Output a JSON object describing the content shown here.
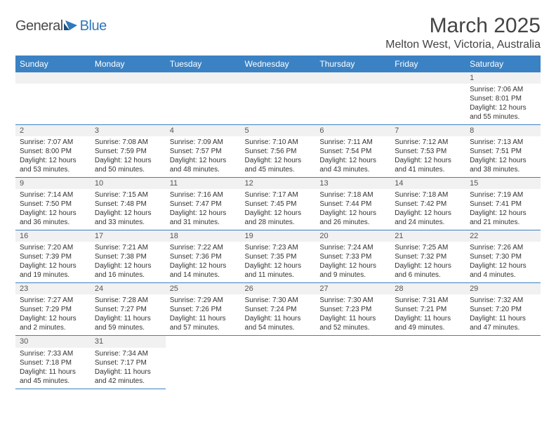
{
  "logo": {
    "text_a": "General",
    "text_b": "Blue"
  },
  "title": "March 2025",
  "location": "Melton West, Victoria, Australia",
  "colors": {
    "header_bg": "#3b82c4",
    "header_fg": "#ffffff",
    "row_divider": "#3b82c4",
    "daynum_bg": "#f1f1f1",
    "text": "#333333",
    "title_color": "#444444",
    "logo_gray": "#4a4a4a",
    "logo_blue": "#2f78bb"
  },
  "typography": {
    "title_size_pt": 30,
    "location_size_pt": 16,
    "dow_size_pt": 12,
    "daynum_size_pt": 11,
    "body_size_pt": 10
  },
  "days_of_week": [
    "Sunday",
    "Monday",
    "Tuesday",
    "Wednesday",
    "Thursday",
    "Friday",
    "Saturday"
  ],
  "weeks": [
    [
      null,
      null,
      null,
      null,
      null,
      null,
      {
        "n": "1",
        "sunrise": "Sunrise: 7:06 AM",
        "sunset": "Sunset: 8:01 PM",
        "daylight": "Daylight: 12 hours and 55 minutes."
      }
    ],
    [
      {
        "n": "2",
        "sunrise": "Sunrise: 7:07 AM",
        "sunset": "Sunset: 8:00 PM",
        "daylight": "Daylight: 12 hours and 53 minutes."
      },
      {
        "n": "3",
        "sunrise": "Sunrise: 7:08 AM",
        "sunset": "Sunset: 7:59 PM",
        "daylight": "Daylight: 12 hours and 50 minutes."
      },
      {
        "n": "4",
        "sunrise": "Sunrise: 7:09 AM",
        "sunset": "Sunset: 7:57 PM",
        "daylight": "Daylight: 12 hours and 48 minutes."
      },
      {
        "n": "5",
        "sunrise": "Sunrise: 7:10 AM",
        "sunset": "Sunset: 7:56 PM",
        "daylight": "Daylight: 12 hours and 45 minutes."
      },
      {
        "n": "6",
        "sunrise": "Sunrise: 7:11 AM",
        "sunset": "Sunset: 7:54 PM",
        "daylight": "Daylight: 12 hours and 43 minutes."
      },
      {
        "n": "7",
        "sunrise": "Sunrise: 7:12 AM",
        "sunset": "Sunset: 7:53 PM",
        "daylight": "Daylight: 12 hours and 41 minutes."
      },
      {
        "n": "8",
        "sunrise": "Sunrise: 7:13 AM",
        "sunset": "Sunset: 7:51 PM",
        "daylight": "Daylight: 12 hours and 38 minutes."
      }
    ],
    [
      {
        "n": "9",
        "sunrise": "Sunrise: 7:14 AM",
        "sunset": "Sunset: 7:50 PM",
        "daylight": "Daylight: 12 hours and 36 minutes."
      },
      {
        "n": "10",
        "sunrise": "Sunrise: 7:15 AM",
        "sunset": "Sunset: 7:48 PM",
        "daylight": "Daylight: 12 hours and 33 minutes."
      },
      {
        "n": "11",
        "sunrise": "Sunrise: 7:16 AM",
        "sunset": "Sunset: 7:47 PM",
        "daylight": "Daylight: 12 hours and 31 minutes."
      },
      {
        "n": "12",
        "sunrise": "Sunrise: 7:17 AM",
        "sunset": "Sunset: 7:45 PM",
        "daylight": "Daylight: 12 hours and 28 minutes."
      },
      {
        "n": "13",
        "sunrise": "Sunrise: 7:18 AM",
        "sunset": "Sunset: 7:44 PM",
        "daylight": "Daylight: 12 hours and 26 minutes."
      },
      {
        "n": "14",
        "sunrise": "Sunrise: 7:18 AM",
        "sunset": "Sunset: 7:42 PM",
        "daylight": "Daylight: 12 hours and 24 minutes."
      },
      {
        "n": "15",
        "sunrise": "Sunrise: 7:19 AM",
        "sunset": "Sunset: 7:41 PM",
        "daylight": "Daylight: 12 hours and 21 minutes."
      }
    ],
    [
      {
        "n": "16",
        "sunrise": "Sunrise: 7:20 AM",
        "sunset": "Sunset: 7:39 PM",
        "daylight": "Daylight: 12 hours and 19 minutes."
      },
      {
        "n": "17",
        "sunrise": "Sunrise: 7:21 AM",
        "sunset": "Sunset: 7:38 PM",
        "daylight": "Daylight: 12 hours and 16 minutes."
      },
      {
        "n": "18",
        "sunrise": "Sunrise: 7:22 AM",
        "sunset": "Sunset: 7:36 PM",
        "daylight": "Daylight: 12 hours and 14 minutes."
      },
      {
        "n": "19",
        "sunrise": "Sunrise: 7:23 AM",
        "sunset": "Sunset: 7:35 PM",
        "daylight": "Daylight: 12 hours and 11 minutes."
      },
      {
        "n": "20",
        "sunrise": "Sunrise: 7:24 AM",
        "sunset": "Sunset: 7:33 PM",
        "daylight": "Daylight: 12 hours and 9 minutes."
      },
      {
        "n": "21",
        "sunrise": "Sunrise: 7:25 AM",
        "sunset": "Sunset: 7:32 PM",
        "daylight": "Daylight: 12 hours and 6 minutes."
      },
      {
        "n": "22",
        "sunrise": "Sunrise: 7:26 AM",
        "sunset": "Sunset: 7:30 PM",
        "daylight": "Daylight: 12 hours and 4 minutes."
      }
    ],
    [
      {
        "n": "23",
        "sunrise": "Sunrise: 7:27 AM",
        "sunset": "Sunset: 7:29 PM",
        "daylight": "Daylight: 12 hours and 2 minutes."
      },
      {
        "n": "24",
        "sunrise": "Sunrise: 7:28 AM",
        "sunset": "Sunset: 7:27 PM",
        "daylight": "Daylight: 11 hours and 59 minutes."
      },
      {
        "n": "25",
        "sunrise": "Sunrise: 7:29 AM",
        "sunset": "Sunset: 7:26 PM",
        "daylight": "Daylight: 11 hours and 57 minutes."
      },
      {
        "n": "26",
        "sunrise": "Sunrise: 7:30 AM",
        "sunset": "Sunset: 7:24 PM",
        "daylight": "Daylight: 11 hours and 54 minutes."
      },
      {
        "n": "27",
        "sunrise": "Sunrise: 7:30 AM",
        "sunset": "Sunset: 7:23 PM",
        "daylight": "Daylight: 11 hours and 52 minutes."
      },
      {
        "n": "28",
        "sunrise": "Sunrise: 7:31 AM",
        "sunset": "Sunset: 7:21 PM",
        "daylight": "Daylight: 11 hours and 49 minutes."
      },
      {
        "n": "29",
        "sunrise": "Sunrise: 7:32 AM",
        "sunset": "Sunset: 7:20 PM",
        "daylight": "Daylight: 11 hours and 47 minutes."
      }
    ],
    [
      {
        "n": "30",
        "sunrise": "Sunrise: 7:33 AM",
        "sunset": "Sunset: 7:18 PM",
        "daylight": "Daylight: 11 hours and 45 minutes."
      },
      {
        "n": "31",
        "sunrise": "Sunrise: 7:34 AM",
        "sunset": "Sunset: 7:17 PM",
        "daylight": "Daylight: 11 hours and 42 minutes."
      },
      null,
      null,
      null,
      null,
      null
    ]
  ]
}
